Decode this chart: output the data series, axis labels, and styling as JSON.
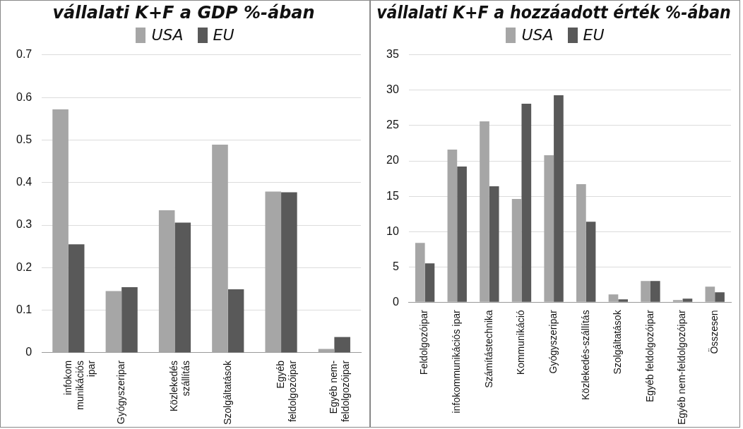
{
  "chart_data": [
    {
      "type": "bar",
      "title": "vállalati K+F a GDP %-ában",
      "categories": [
        "infokom\nmunikációs\nipar",
        "Gyógyszeripar",
        "Közlekedés\nszállítás",
        "Szolgáltatások",
        "Egyéb\nfeldolgozóipar",
        "Egyéb nem-\nfeldolgozóipar"
      ],
      "series": [
        {
          "name": "USA",
          "color": "#a6a6a6",
          "values": [
            0.572,
            0.145,
            0.335,
            0.489,
            0.379,
            0.009
          ]
        },
        {
          "name": "EU",
          "color": "#595959",
          "values": [
            0.255,
            0.154,
            0.306,
            0.149,
            0.377,
            0.037
          ]
        }
      ],
      "ylim": [
        0,
        0.7
      ],
      "yticks": [
        0,
        0.1,
        0.2,
        0.3,
        0.4,
        0.5,
        0.6,
        0.7
      ],
      "grid": "y",
      "legend": "top"
    },
    {
      "type": "bar",
      "title": "vállalati K+F a hozzáadott érték %-ában",
      "categories": [
        "Feldolgozóipar",
        "infokommunikációs ipar",
        "Számítástechnika",
        "Kommunikáció",
        "Gyógyszeripar",
        "Közlekedés-szállítás",
        "Szolgáltatások",
        "Egyéb feldolgozóipar",
        "Egyéb nem-feldolgozóipar",
        "Összesen"
      ],
      "series": [
        {
          "name": "USA",
          "color": "#a6a6a6",
          "values": [
            8.4,
            21.6,
            25.6,
            14.6,
            20.8,
            16.7,
            1.1,
            3.0,
            0.3,
            2.2
          ]
        },
        {
          "name": "EU",
          "color": "#595959",
          "values": [
            5.5,
            19.2,
            16.4,
            28.1,
            29.3,
            11.4,
            0.4,
            3.0,
            0.5,
            1.4
          ]
        }
      ],
      "ylim": [
        0,
        35
      ],
      "yticks": [
        0,
        5,
        10,
        15,
        20,
        25,
        30,
        35
      ],
      "grid": "y",
      "legend": "top"
    }
  ]
}
